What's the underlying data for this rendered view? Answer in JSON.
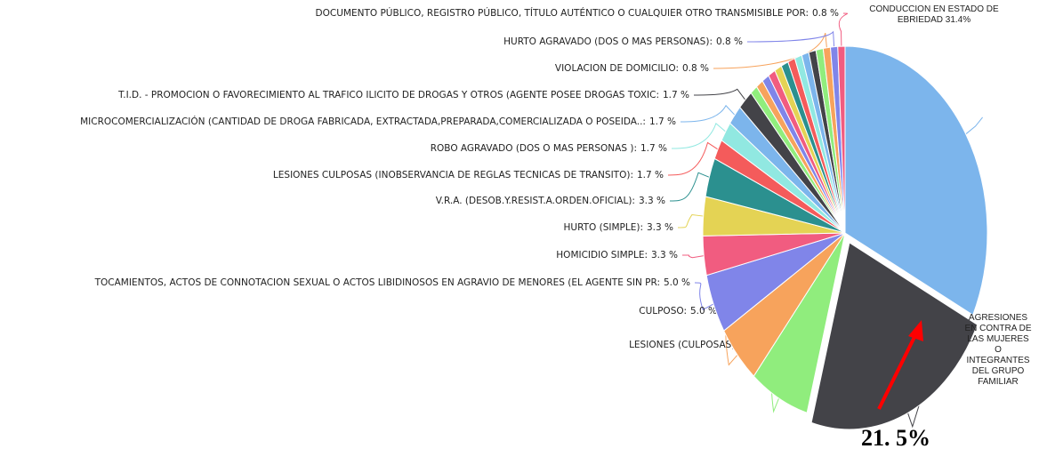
{
  "chart_data": {
    "type": "pie",
    "categories": [
      "CONDUCCION EN ESTADO DE EBRIEDAD",
      "AGRESIONES EN CONTRA DE LAS MUJERES O INTEGRANTES DEL GRUPO FAMILIAR",
      "LESIONES (CULPOSAS):",
      "CULPOSO:",
      "TOCAMIENTOS, ACTOS DE CONNOTACION SEXUAL O ACTOS LIBIDINOSOS EN AGRAVIO DE MENORES (EL AGENTE SIN PR:",
      "HOMICIDIO SIMPLE:",
      "HURTO (SIMPLE):",
      "V.R.A. (DESOB.Y.RESIST.A.ORDEN.OFICIAL):",
      "LESIONES CULPOSAS (INOBSERVANCIA DE REGLAS TECNICAS DE TRANSITO):",
      "ROBO AGRAVADO (DOS O MAS PERSONAS ):",
      "MICROCOMERCIALIZACIÓN (CANTIDAD DE DROGA FABRICADA, EXTRACTADA,PREPARADA,COMERCIALIZADA O POSEIDA..:",
      "T.I.D. - PROMOCION O FAVORECIMIENTO AL TRAFICO ILICITO DE DROGAS Y OTROS (AGENTE POSEE DROGAS TOXIC:",
      null,
      null,
      null,
      null,
      null,
      null,
      null,
      null,
      null,
      null,
      null,
      "VIOLACION DE DOMICILIO:",
      "HURTO AGRAVADO (DOS O MAS PERSONAS):",
      "DOCUMENTO PÚBLICO, REGISTRO PÚBLICO, TÍTULO AUTÉNTICO O CUALQUIER OTRO TRANSMISIBLE POR:"
    ],
    "values": [
      31.4,
      21.5,
      6.6,
      5.0,
      5.0,
      3.3,
      3.3,
      3.3,
      1.7,
      1.7,
      1.7,
      1.7,
      0.8,
      0.8,
      0.8,
      0.8,
      0.8,
      0.8,
      0.8,
      0.8,
      0.8,
      0.8,
      0.8,
      0.8,
      0.8,
      0.8
    ],
    "value_labels": [
      "31.4%",
      "21. 5%",
      "6.6 %",
      "5.0 %",
      "5.0 %",
      "3.3 %",
      "3.3 %",
      "3.3 %",
      "1.7 %",
      "1.7 %",
      "1.7 %",
      "1.7 %",
      null,
      null,
      null,
      null,
      null,
      null,
      null,
      null,
      null,
      null,
      null,
      "0.8 %",
      "0.8 %",
      "0.8 %"
    ],
    "colors": [
      "#7cb5ec",
      "#434348",
      "#90ed7d",
      "#f7a35c",
      "#8085e9",
      "#f15c80",
      "#e4d354",
      "#2b908f",
      "#f45b5b",
      "#91e8e1",
      "#7cb5ec",
      "#434348",
      "#90ed7d",
      "#f7a35c",
      "#8085e9",
      "#f15c80",
      "#e4d354",
      "#2b908f",
      "#f45b5b",
      "#91e8e1",
      "#7cb5ec",
      "#434348",
      "#90ed7d",
      "#f7a35c",
      "#8085e9",
      "#f15c80"
    ]
  }
}
